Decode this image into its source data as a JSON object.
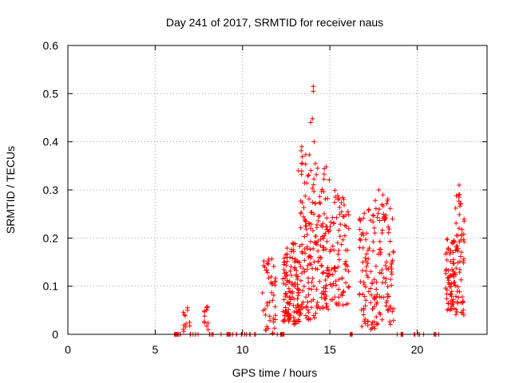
{
  "chart_data": {
    "type": "scatter",
    "title": "Day 241 of 2017, SRMTID for receiver naus",
    "xlabel": "GPS time / hours",
    "ylabel": "SRMTID / TECUs",
    "xlim": [
      0,
      24
    ],
    "ylim": [
      0,
      0.6
    ],
    "xticks": [
      0,
      5,
      10,
      15,
      20
    ],
    "xtick_labels": [
      "0",
      "5",
      "10",
      "15",
      "20"
    ],
    "yticks": [
      0,
      0.1,
      0.2,
      0.3,
      0.4,
      0.5,
      0.6
    ],
    "ytick_labels": [
      "0",
      "0.1",
      "0.2",
      "0.3",
      "0.4",
      "0.5",
      "0.6"
    ],
    "grid": true,
    "legend": "none",
    "marker": "plus",
    "series": [
      {
        "name": "SRMTID",
        "color": "#ff0000",
        "clusters": [
          {
            "x0": 6.1,
            "x1": 6.5,
            "ymin": 0.0,
            "ymax": 0.0,
            "n": 8
          },
          {
            "x0": 6.6,
            "x1": 7.0,
            "ymin": 0.0,
            "ymax": 0.057,
            "n": 12
          },
          {
            "x0": 7.0,
            "x1": 7.6,
            "ymin": 0.0,
            "ymax": 0.0,
            "n": 6
          },
          {
            "x0": 7.8,
            "x1": 8.1,
            "ymin": 0.0,
            "ymax": 0.06,
            "n": 12
          },
          {
            "x0": 8.1,
            "x1": 11.0,
            "ymin": 0.0,
            "ymax": 0.0,
            "n": 22
          },
          {
            "x0": 11.1,
            "x1": 11.9,
            "ymin": 0.0,
            "ymax": 0.16,
            "n": 45
          },
          {
            "x0": 11.9,
            "x1": 12.4,
            "ymin": 0.0,
            "ymax": 0.0,
            "n": 8
          },
          {
            "x0": 12.3,
            "x1": 13.3,
            "ymin": 0.02,
            "ymax": 0.19,
            "n": 130
          },
          {
            "x0": 13.3,
            "x1": 14.2,
            "ymin": 0.03,
            "ymax": 0.39,
            "n": 110
          },
          {
            "x0": 14.2,
            "x1": 15.0,
            "ymin": 0.05,
            "ymax": 0.35,
            "n": 90
          },
          {
            "x0": 15.0,
            "x1": 16.1,
            "ymin": 0.06,
            "ymax": 0.31,
            "n": 85
          },
          {
            "x0": 16.0,
            "x1": 16.3,
            "ymin": 0.0,
            "ymax": 0.0,
            "n": 4
          },
          {
            "x0": 16.7,
            "x1": 17.6,
            "ymin": 0.01,
            "ymax": 0.26,
            "n": 80
          },
          {
            "x0": 17.6,
            "x1": 18.7,
            "ymin": 0.02,
            "ymax": 0.29,
            "n": 90
          },
          {
            "x0": 18.7,
            "x1": 20.4,
            "ymin": 0.0,
            "ymax": 0.0,
            "n": 10
          },
          {
            "x0": 20.9,
            "x1": 21.5,
            "ymin": 0.0,
            "ymax": 0.0,
            "n": 4
          },
          {
            "x0": 21.6,
            "x1": 22.2,
            "ymin": 0.05,
            "ymax": 0.2,
            "n": 70
          },
          {
            "x0": 22.2,
            "x1": 22.7,
            "ymin": 0.04,
            "ymax": 0.3,
            "n": 60
          }
        ],
        "highlight_points": [
          {
            "x": 14.05,
            "y": 0.515
          },
          {
            "x": 14.05,
            "y": 0.505
          },
          {
            "x": 14.0,
            "y": 0.448
          },
          {
            "x": 13.9,
            "y": 0.44
          },
          {
            "x": 14.1,
            "y": 0.4
          },
          {
            "x": 14.3,
            "y": 0.345
          },
          {
            "x": 13.2,
            "y": 0.34
          },
          {
            "x": 22.4,
            "y": 0.31
          },
          {
            "x": 17.8,
            "y": 0.3
          }
        ]
      }
    ]
  }
}
